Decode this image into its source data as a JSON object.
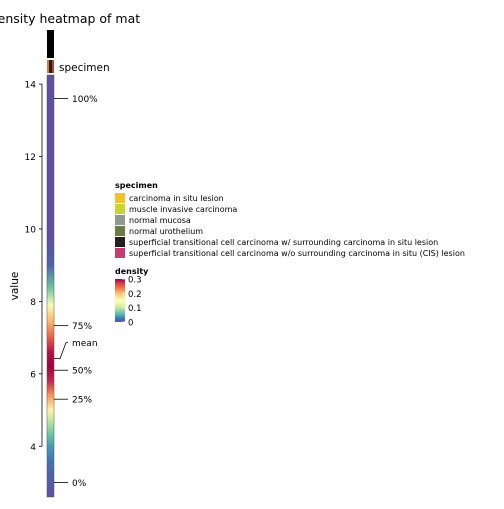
{
  "chart_data": {
    "type": "heatmap",
    "title": "Density heatmap of mat",
    "ylabel": "value",
    "ylim": [
      2.6,
      14.25
    ],
    "y_ticks": [
      4,
      6,
      8,
      10,
      12,
      14
    ],
    "column_annotation": {
      "name": "specimen",
      "value": "superficial transitional cell carcinoma w/ surrounding carcinoma in situ lesion",
      "color": "#231f20"
    },
    "quantiles": [
      {
        "label": "100%",
        "value": 13.6
      },
      {
        "label": "75%",
        "value": 7.33
      },
      {
        "label": "mean",
        "value": 6.42
      },
      {
        "label": "50%",
        "value": 6.1
      },
      {
        "label": "25%",
        "value": 5.3
      },
      {
        "label": "0%",
        "value": 3.0
      }
    ],
    "density_profile": [
      {
        "value": 14.1,
        "density": 0.0
      },
      {
        "value": 9.8,
        "density": 0.0
      },
      {
        "value": 9.0,
        "density": 0.01
      },
      {
        "value": 8.4,
        "density": 0.06
      },
      {
        "value": 7.9,
        "density": 0.14
      },
      {
        "value": 7.5,
        "density": 0.2
      },
      {
        "value": 7.0,
        "density": 0.25
      },
      {
        "value": 6.6,
        "density": 0.29
      },
      {
        "value": 6.2,
        "density": 0.3
      },
      {
        "value": 5.8,
        "density": 0.28
      },
      {
        "value": 5.4,
        "density": 0.22
      },
      {
        "value": 5.0,
        "density": 0.16
      },
      {
        "value": 4.7,
        "density": 0.1
      },
      {
        "value": 4.3,
        "density": 0.06
      },
      {
        "value": 4.0,
        "density": 0.04
      },
      {
        "value": 3.6,
        "density": 0.02
      },
      {
        "value": 3.2,
        "density": 0.01
      },
      {
        "value": 2.6,
        "density": 0.0
      }
    ],
    "legend_specimen": {
      "title": "specimen",
      "items": [
        {
          "label": "carcinoma in situ lesion",
          "color": "#f2c12e"
        },
        {
          "label": "muscle invasive carcinoma",
          "color": "#c6d62a"
        },
        {
          "label": "normal mucosa",
          "color": "#8e9a8d"
        },
        {
          "label": "normal urothelium",
          "color": "#6b7c45"
        },
        {
          "label": "superficial transitional cell carcinoma w/ surrounding carcinoma in situ lesion",
          "color": "#231f20"
        },
        {
          "label": "superficial transitional cell carcinoma w/o surrounding carcinoma in situ (CIS) lesion",
          "color": "#c93c72"
        }
      ]
    },
    "legend_density": {
      "title": "density",
      "ticks": [
        {
          "label": "0.3",
          "value": 0.3
        },
        {
          "label": "0.2",
          "value": 0.2
        },
        {
          "label": "0.1",
          "value": 0.1
        },
        {
          "label": "0",
          "value": 0.0
        }
      ],
      "range": [
        0,
        0.3
      ]
    },
    "colormap": [
      "#5e4fa2",
      "#3288bd",
      "#66c2a5",
      "#abdda4",
      "#e6f598",
      "#ffffbf",
      "#fee08b",
      "#fdae61",
      "#f46d43",
      "#d53e4f",
      "#9e0142"
    ]
  },
  "colors": {
    "top_black_bar": "#000000",
    "specimen_stripe_left": "#e8743b",
    "specimen_stripe_mid": "#231f20",
    "specimen_stripe_right": "#b5432c"
  }
}
